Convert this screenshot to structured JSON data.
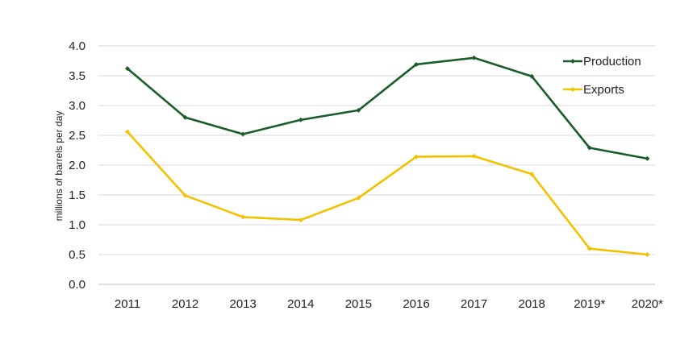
{
  "chart_data": {
    "type": "line",
    "title": "",
    "xlabel": "",
    "ylabel": "millions of barrels per day",
    "categories": [
      "2011",
      "2012",
      "2013",
      "2014",
      "2015",
      "2016",
      "2017",
      "2018",
      "2019*",
      "2020*"
    ],
    "series": [
      {
        "name": "Production",
        "color": "#1a5c2a",
        "values": [
          3.62,
          2.8,
          2.52,
          2.76,
          2.92,
          3.69,
          3.8,
          3.49,
          2.29,
          2.11
        ]
      },
      {
        "name": "Exports",
        "color": "#f2c200",
        "values": [
          2.56,
          1.49,
          1.13,
          1.08,
          1.45,
          2.14,
          2.15,
          1.85,
          0.6,
          0.5
        ]
      }
    ],
    "ylim": [
      0,
      4.0
    ],
    "yticks": [
      "0.0",
      "0.5",
      "1.0",
      "1.5",
      "2.0",
      "2.5",
      "3.0",
      "3.5",
      "4.0"
    ],
    "grid": true,
    "legend_position": "top-right"
  }
}
